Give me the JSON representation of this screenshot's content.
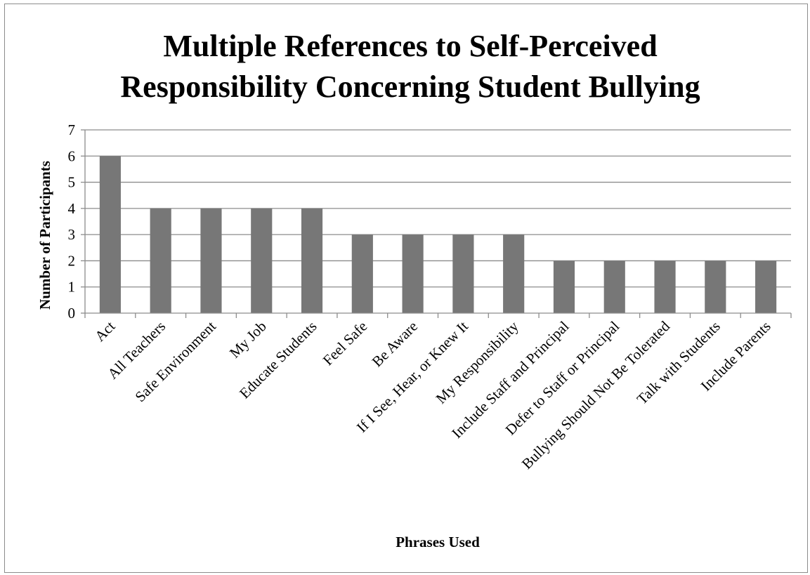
{
  "chart_data": {
    "type": "bar",
    "title_lines": [
      "Multiple References to Self-Perceived",
      "Responsibility Concerning Student Bullying"
    ],
    "xlabel": "Phrases Used",
    "ylabel": "Number of Participants",
    "ylim": [
      0,
      7
    ],
    "yticks": [
      0,
      1,
      2,
      3,
      4,
      5,
      6,
      7
    ],
    "grid": true,
    "legend": "none",
    "bar_color": "#777777",
    "categories": [
      "Act",
      "All Teachers",
      "Safe Environment",
      "My Job",
      "Educate Students",
      "Feel Safe",
      "Be Aware",
      "If I See, Hear, or Knew It",
      "My Responsibility",
      "Include Staff and Principal",
      "Defer to Staff or Principal",
      "Bullying Should Not Be Tolerated",
      "Talk with Students",
      "Include Parents"
    ],
    "values": [
      6,
      4,
      4,
      4,
      4,
      3,
      3,
      3,
      3,
      2,
      2,
      2,
      2,
      2
    ]
  }
}
